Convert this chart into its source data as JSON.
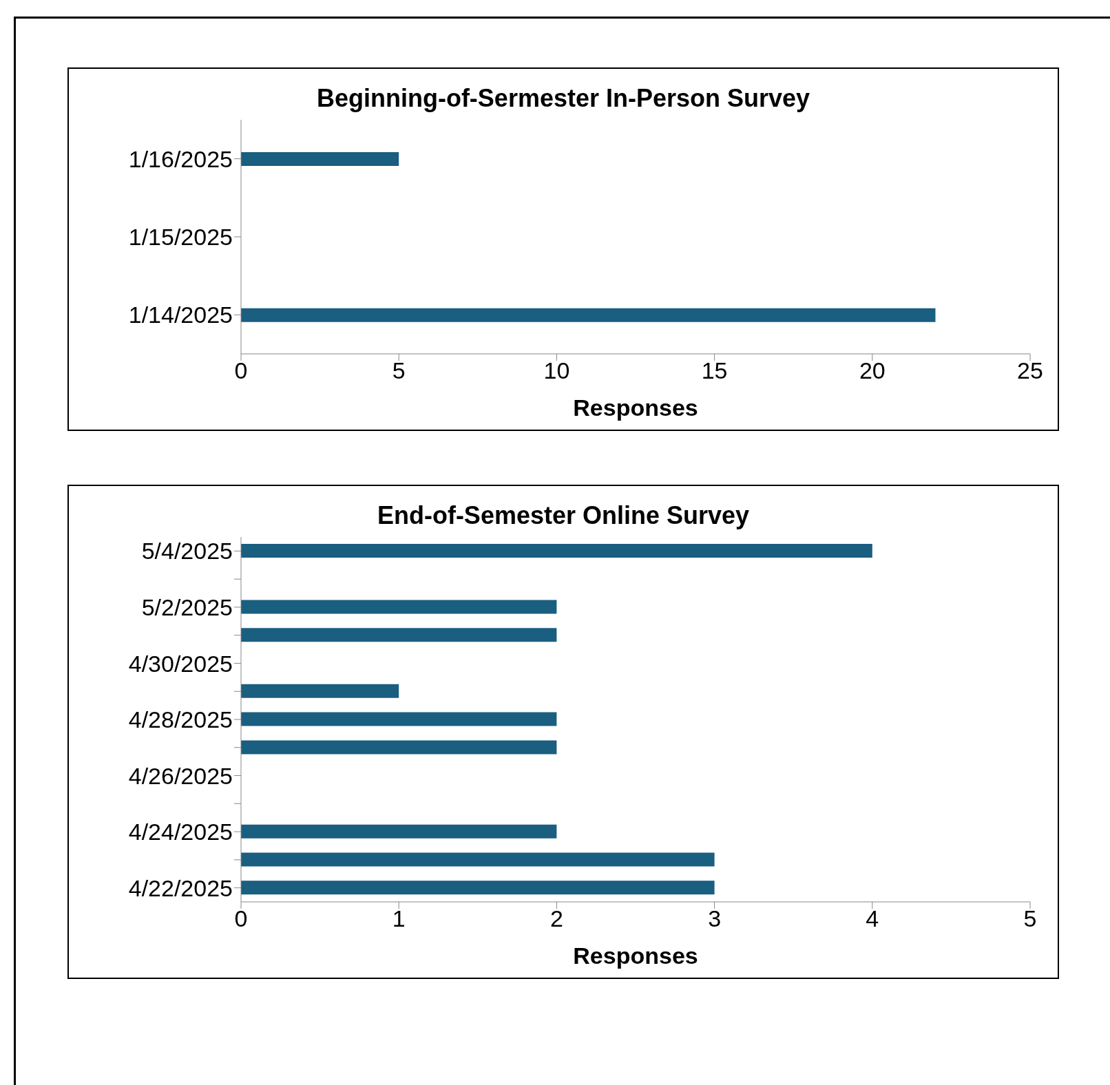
{
  "chart_data": [
    {
      "type": "bar",
      "orientation": "horizontal",
      "title": "Beginning-of-Sermester In-Person Survey",
      "xlabel": "Responses",
      "categories": [
        "1/16/2025",
        "1/15/2025",
        "1/14/2025"
      ],
      "values": [
        5,
        null,
        22
      ],
      "color": "#1a5e80",
      "xlim": [
        0,
        25
      ],
      "xticks": [
        0,
        5,
        10,
        15,
        20,
        25
      ],
      "grid": false,
      "legend": false
    },
    {
      "type": "bar",
      "orientation": "horizontal",
      "title": "End-of-Semester Online Survey",
      "xlabel": "Responses",
      "categories": [
        "5/4/2025",
        null,
        "5/2/2025",
        null,
        "4/30/2025",
        null,
        "4/28/2025",
        null,
        "4/26/2025",
        null,
        "4/24/2025",
        null,
        "4/22/2025"
      ],
      "values": [
        4,
        null,
        2,
        2,
        null,
        1,
        2,
        2,
        null,
        null,
        2,
        3,
        3
      ],
      "color": "#1a5e80",
      "xlim": [
        0,
        5
      ],
      "xticks": [
        0,
        1,
        2,
        3,
        4,
        5
      ],
      "grid": false,
      "legend": false
    }
  ]
}
